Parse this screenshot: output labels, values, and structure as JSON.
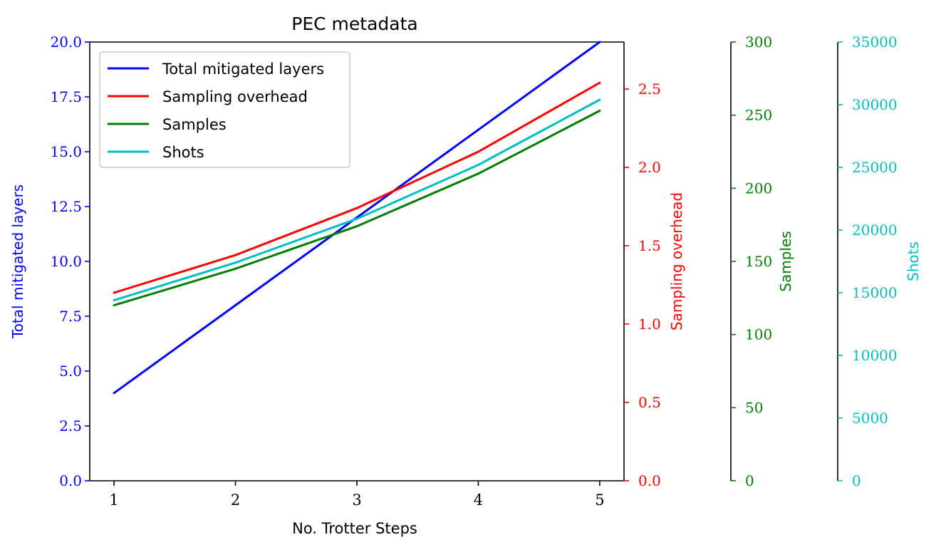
{
  "chart_data": {
    "type": "line",
    "title": "PEC metadata",
    "xlabel": "No. Trotter Steps",
    "x": [
      1,
      2,
      3,
      4,
      5
    ],
    "xlim": [
      0.8,
      5.2
    ],
    "x_ticks": [
      "1",
      "2",
      "3",
      "4",
      "5"
    ],
    "grid": false,
    "legend_position": "upper-left",
    "axes": [
      {
        "id": "layers",
        "label": "Total mitigated layers",
        "side": "left",
        "color": "#0000ff",
        "ylim": [
          0,
          20
        ],
        "ticks": [
          0,
          2.5,
          5,
          7.5,
          10,
          12.5,
          15,
          17.5,
          20
        ],
        "tick_labels": [
          "0.0",
          "2.5",
          "5.0",
          "7.5",
          "10.0",
          "12.5",
          "15.0",
          "17.5",
          "20.0"
        ]
      },
      {
        "id": "overhead",
        "label": "Sampling overhead",
        "side": "right",
        "color": "#ff0000",
        "ylim": [
          0,
          2.8
        ],
        "ticks": [
          0,
          0.5,
          1,
          1.5,
          2,
          2.5
        ],
        "tick_labels": [
          "0.0",
          "0.5",
          "1.0",
          "1.5",
          "2.0",
          "2.5"
        ]
      },
      {
        "id": "samples",
        "label": "Samples",
        "side": "right",
        "color": "#008000",
        "ylim": [
          0,
          300
        ],
        "ticks": [
          0,
          50,
          100,
          150,
          200,
          250,
          300
        ],
        "tick_labels": [
          "0",
          "50",
          "100",
          "150",
          "200",
          "250",
          "300"
        ]
      },
      {
        "id": "shots",
        "label": "Shots",
        "side": "right",
        "color": "#00bfbf",
        "ylim": [
          0,
          35000
        ],
        "ticks": [
          0,
          5000,
          10000,
          15000,
          20000,
          25000,
          30000,
          35000
        ],
        "tick_labels": [
          "0",
          "5000",
          "10000",
          "15000",
          "20000",
          "25000",
          "30000",
          "35000"
        ]
      }
    ],
    "series": [
      {
        "name": "Total mitigated layers",
        "axis": "layers",
        "color": "#0000ff",
        "values": [
          4,
          8,
          12,
          16,
          20
        ]
      },
      {
        "name": "Sampling overhead",
        "axis": "overhead",
        "color": "#ff0000",
        "values": [
          1.2,
          1.44,
          1.74,
          2.1,
          2.54
        ]
      },
      {
        "name": "Samples",
        "axis": "samples",
        "color": "#008000",
        "values": [
          120,
          145,
          174,
          210,
          253
        ]
      },
      {
        "name": "Shots",
        "axis": "shots",
        "color": "#00bfbf",
        "values": [
          14400,
          17400,
          20900,
          25200,
          30400
        ]
      }
    ]
  }
}
